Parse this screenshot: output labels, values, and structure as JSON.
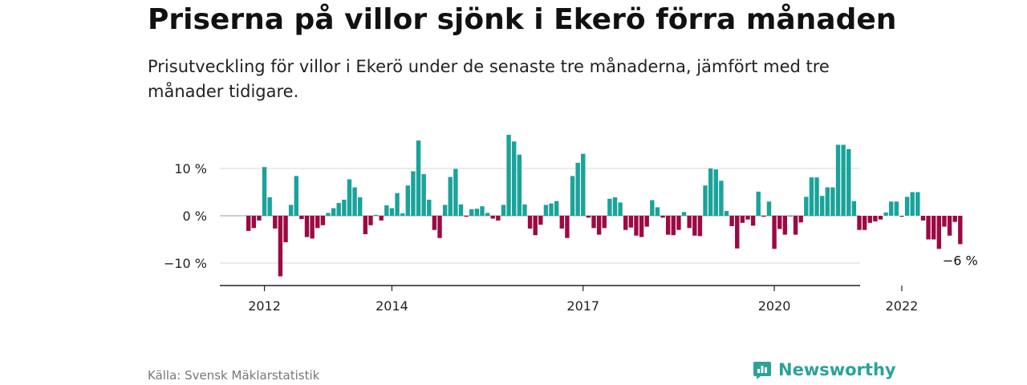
{
  "header": {
    "title": "Priserna på villor sjönk i Ekerö förra månaden",
    "subtitle": "Prisutveckling för villor i Ekerö under de senaste tre månaderna, jämfört med tre månader tidigare."
  },
  "footer": {
    "source": "Källa: Svensk Mäklarstatistik",
    "brand": "Newsworthy",
    "brand_icon": "newsworthy-logo-icon"
  },
  "colors": {
    "positive": "#1aa39a",
    "negative": "#9b0a45",
    "grid": "#d8d8d8",
    "axis": "#222222",
    "brand": "#2aa39a"
  },
  "chart_data": {
    "type": "bar",
    "unit": "%",
    "start": "2011-10",
    "frequency": "monthly",
    "ylim": [
      -14,
      18.5
    ],
    "yticks": [
      10,
      0,
      -10
    ],
    "ytick_labels": [
      "10 %",
      "0 %",
      "−10 %"
    ],
    "xtick_labels": [
      "2012",
      "2014",
      "2017",
      "2020",
      "2022"
    ],
    "xtick_positions": [
      "2012-01",
      "2014-01",
      "2017-01",
      "2020-01",
      "2022-01"
    ],
    "grid": "horizontal",
    "annotation": {
      "label": "−6 %",
      "at": "last"
    },
    "values": [
      -3.2,
      -2.6,
      -1.0,
      10.3,
      3.9,
      -2.7,
      -12.8,
      -5.6,
      2.3,
      8.4,
      -0.7,
      -4.5,
      -4.8,
      -2.6,
      -2.0,
      0.6,
      1.6,
      2.7,
      3.4,
      7.7,
      6.0,
      3.9,
      -3.9,
      -2.0,
      0.2,
      -1.0,
      2.2,
      1.6,
      4.8,
      0.5,
      6.4,
      9.4,
      15.9,
      8.8,
      3.4,
      -3.0,
      -4.7,
      2.3,
      8.2,
      9.9,
      2.4,
      -0.2,
      1.4,
      1.5,
      2.0,
      0.6,
      -0.6,
      -1.0,
      2.3,
      17.1,
      15.7,
      12.9,
      2.4,
      -2.7,
      -4.1,
      -1.9,
      2.3,
      2.6,
      3.1,
      -2.7,
      -4.7,
      8.4,
      11.2,
      13.1,
      -0.4,
      -2.6,
      -4.0,
      -2.6,
      3.6,
      3.9,
      2.8,
      -3.0,
      -2.5,
      -4.2,
      -4.5,
      -2.3,
      3.3,
      1.8,
      -0.4,
      -4.0,
      -4.1,
      -3.0,
      0.8,
      -2.6,
      -4.2,
      -4.3,
      6.4,
      10.0,
      9.8,
      7.4,
      1.0,
      -2.2,
      -6.9,
      -1.5,
      -0.8,
      -2.1,
      5.1,
      -0.2,
      3.0,
      -7.0,
      -2.8,
      -4.0,
      -0.1,
      -4.0,
      -1.4,
      4.0,
      8.1,
      8.1,
      4.2,
      6.0,
      6.0,
      15.0,
      15.0,
      14.1,
      3.1,
      -3.0,
      -3.0,
      -1.5,
      -1.2,
      -0.8,
      0.7,
      3.0,
      3.0,
      -0.2,
      4.0,
      5.0,
      5.0,
      -1.0,
      -5.0,
      -5.0,
      -7.0,
      -2.3,
      -4.2,
      -1.3,
      -6.0
    ]
  }
}
